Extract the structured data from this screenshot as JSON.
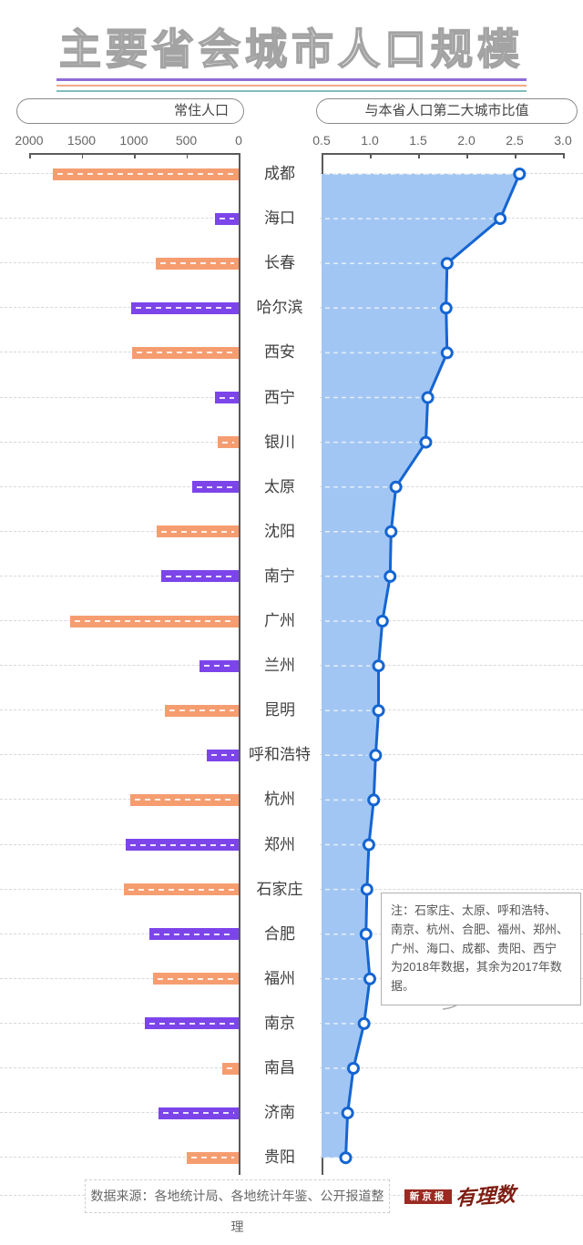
{
  "title": "主要省会城市人口规模",
  "chart_data": [
    {
      "type": "bar",
      "title": "常住人口",
      "orientation": "horizontal",
      "axis_reversed": true,
      "xlim": [
        0,
        2000
      ],
      "tick_labels": [
        "2000",
        "1500",
        "1000",
        "500",
        "0"
      ],
      "categories": [
        "成都",
        "海口",
        "长春",
        "哈尔滨",
        "西安",
        "西宁",
        "银川",
        "太原",
        "沈阳",
        "南宁",
        "广州",
        "兰州",
        "昆明",
        "呼和浩特",
        "杭州",
        "郑州",
        "石家庄",
        "合肥",
        "福州",
        "南京",
        "南昌",
        "济南",
        "贵阳"
      ],
      "values": [
        1770,
        225,
        790,
        1025,
        1015,
        225,
        200,
        445,
        785,
        740,
        1610,
        375,
        705,
        305,
        1035,
        1075,
        1095,
        850,
        815,
        895,
        160,
        765,
        495
      ]
    },
    {
      "type": "line",
      "title": "与本省人口第二大城市比值",
      "orientation": "horizontal",
      "marker": "open-circle",
      "area_fill": true,
      "xlim": [
        0.5,
        3.0
      ],
      "tick_labels": [
        "0.5",
        "1.0",
        "1.5",
        "2.0",
        "2.5",
        "3.0"
      ],
      "categories": [
        "成都",
        "海口",
        "长春",
        "哈尔滨",
        "西安",
        "西宁",
        "银川",
        "太原",
        "沈阳",
        "南宁",
        "广州",
        "兰州",
        "昆明",
        "呼和浩特",
        "杭州",
        "郑州",
        "石家庄",
        "合肥",
        "福州",
        "南京",
        "南昌",
        "济南",
        "贵阳"
      ],
      "values": [
        2.55,
        2.35,
        1.8,
        1.79,
        1.8,
        1.6,
        1.58,
        1.27,
        1.22,
        1.21,
        1.13,
        1.09,
        1.09,
        1.06,
        1.04,
        0.99,
        0.97,
        0.96,
        1.0,
        0.94,
        0.83,
        0.77,
        0.75
      ]
    }
  ],
  "note": {
    "lines": [
      "注：石家庄、太原、呼和浩特、",
      "南京、杭州、合肥、福州、郑州、",
      "广州、海口、成都、贵阳、西宁",
      "为2018年数据，其余为2017年数据。"
    ]
  },
  "source": {
    "text": "数据来源：各地统计局、各地统计年鉴、公开报道整理"
  },
  "logos": {
    "xinjingbao": "新京报",
    "youlishu": "有理数"
  },
  "colors": {
    "bar_orange": "#F69D70",
    "bar_purple": "#7C45EA",
    "line_blue": "#1565D2",
    "area_blue": "#A2C6F3",
    "underline_purple": "#8F6BD8",
    "underline_orange": "#F2A988",
    "underline_teal": "#82BDBD",
    "logo_red": "#9B2A22"
  }
}
